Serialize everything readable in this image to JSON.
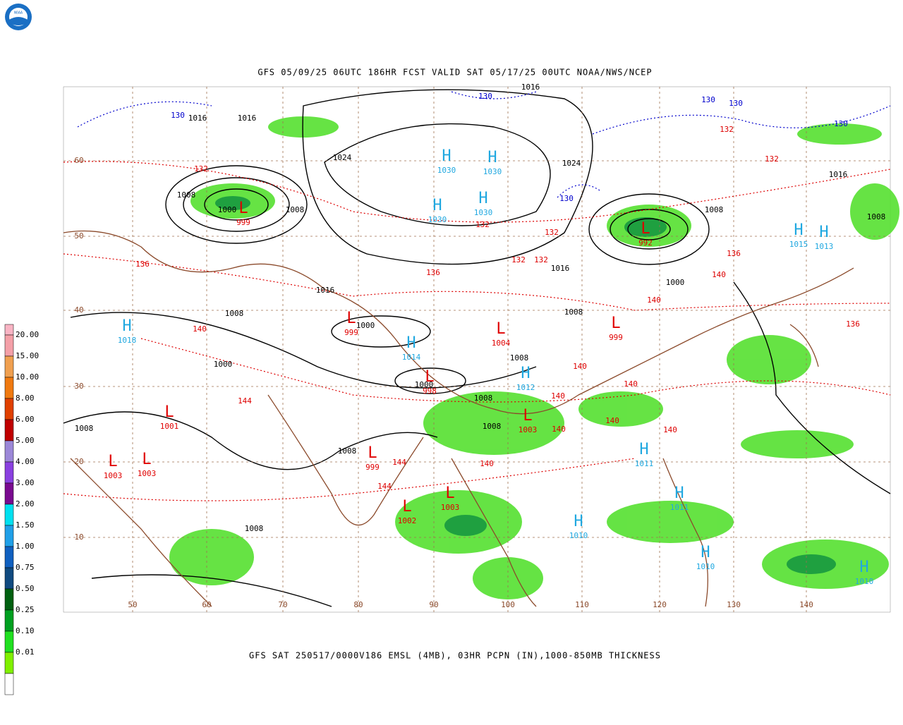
{
  "header": {
    "logo_text": "NOAA",
    "title": "GFS 05/09/25 06UTC 186HR FCST VALID SAT 05/17/25 00UTC NOAA/NWS/NCEP"
  },
  "footer": {
    "caption": "GFS SAT 250517/0000V186 EMSL (4MB), 03HR PCPN (IN),1000-850MB THICKNESS"
  },
  "legend": {
    "labels": [
      "20.00",
      "15.00",
      "10.00",
      "8.00",
      "6.00",
      "5.00",
      "4.00",
      "3.00",
      "2.00",
      "1.50",
      "1.00",
      "0.75",
      "0.50",
      "0.25",
      "0.10",
      "0.01"
    ],
    "colors": [
      "#f9b4c4",
      "#f4a0a8",
      "#f0a050",
      "#f07a10",
      "#e04000",
      "#c00000",
      "#9c88d8",
      "#8a40e0",
      "#7a0a90",
      "#00e0f0",
      "#20a0e8",
      "#1060c0",
      "#104a80",
      "#006010",
      "#00a020",
      "#20e020",
      "#80f000",
      "#ffffff"
    ]
  },
  "map": {
    "lat_labels": [
      "60",
      "50",
      "40",
      "30",
      "20",
      "10"
    ],
    "lon_labels": [
      "50",
      "60",
      "70",
      "80",
      "90",
      "100",
      "110",
      "120",
      "130",
      "140"
    ],
    "centers": [
      {
        "symbol": "H",
        "value": "1030"
      },
      {
        "symbol": "H",
        "value": "1030"
      },
      {
        "symbol": "H",
        "value": "1030"
      },
      {
        "symbol": "H",
        "value": "1030"
      },
      {
        "symbol": "L",
        "value": "999"
      },
      {
        "symbol": "L",
        "value": "992"
      },
      {
        "symbol": "H",
        "value": "1015"
      },
      {
        "symbol": "H",
        "value": "1013"
      },
      {
        "symbol": "H",
        "value": "1018"
      },
      {
        "symbol": "L",
        "value": "999"
      },
      {
        "symbol": "H",
        "value": "1014"
      },
      {
        "symbol": "L",
        "value": "1004"
      },
      {
        "symbol": "L",
        "value": "999"
      },
      {
        "symbol": "H",
        "value": "1012"
      },
      {
        "symbol": "L",
        "value": "998"
      },
      {
        "symbol": "L",
        "value": "1003"
      },
      {
        "symbol": "H",
        "value": "1011"
      },
      {
        "symbol": "L",
        "value": "999"
      },
      {
        "symbol": "L",
        "value": "1003"
      },
      {
        "symbol": "L",
        "value": "1002"
      },
      {
        "symbol": "H",
        "value": "1010"
      },
      {
        "symbol": "H",
        "value": "1010"
      },
      {
        "symbol": "H",
        "value": "1011"
      },
      {
        "symbol": "L",
        "value": "1003"
      },
      {
        "symbol": "L",
        "value": "1003"
      },
      {
        "symbol": "L",
        "value": "1001"
      },
      {
        "symbol": "H",
        "value": "1010"
      }
    ],
    "isobar_labels": [
      "1016",
      "1016",
      "1016",
      "1024",
      "1024",
      "1016",
      "1008",
      "1000",
      "1008",
      "1008",
      "1016",
      "1000",
      "1008",
      "1008",
      "1000",
      "1008",
      "1000",
      "1008",
      "1000",
      "1008",
      "1008",
      "1008",
      "1008",
      "1016",
      "1008"
    ],
    "thickness_labels": [
      "132",
      "132",
      "132",
      "136",
      "132",
      "132",
      "136",
      "140",
      "140",
      "140",
      "140",
      "140",
      "144",
      "144",
      "140",
      "140",
      "140",
      "140",
      "144",
      "136",
      "136",
      "140",
      "132",
      "132"
    ],
    "blue_labels": [
      "130",
      "130",
      "130",
      "130",
      "130",
      "130"
    ]
  }
}
